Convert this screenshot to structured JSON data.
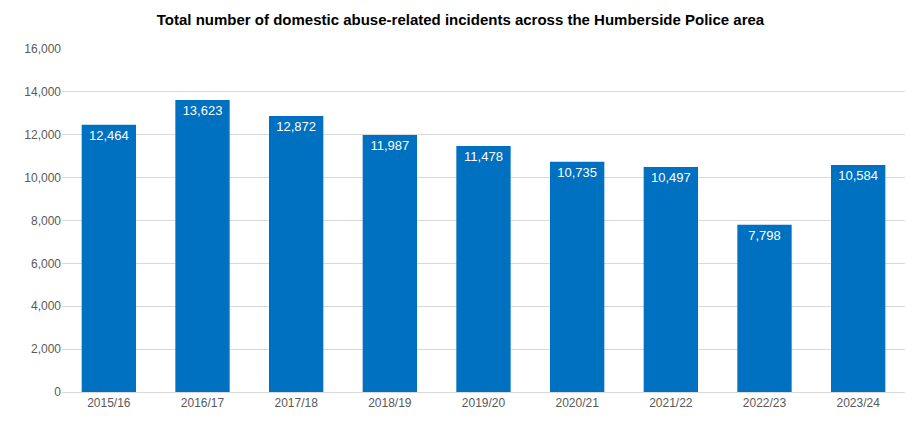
{
  "chart_data": {
    "type": "bar",
    "title": "Total number of domestic abuse-related incidents across the Humberside Police area",
    "categories": [
      "2015/16",
      "2016/17",
      "2017/18",
      "2018/19",
      "2019/20",
      "2020/21",
      "2021/22",
      "2022/23",
      "2023/24"
    ],
    "values": [
      12464,
      13623,
      12872,
      11987,
      11478,
      10735,
      10497,
      7798,
      10584
    ],
    "value_labels": [
      "12,464",
      "13,623",
      "12,872",
      "11,987",
      "11,478",
      "10,735",
      "10,497",
      "7,798",
      "10,584"
    ],
    "color": "#0070c0",
    "ylim": [
      0,
      16000
    ],
    "yticks": [
      0,
      {
        "value": 2000,
        "label": "2,000"
      },
      {
        "value": 4000,
        "label": "4,000"
      },
      {
        "value": 6000,
        "label": "6,000"
      },
      {
        "value": 8000,
        "label": "8,000"
      },
      {
        "value": 10000,
        "label": "10,000"
      },
      {
        "value": 12000,
        "label": "12,000"
      },
      {
        "value": 14000,
        "label": "14,000"
      },
      {
        "value": 16000,
        "label": "16,000"
      }
    ],
    "grid": true,
    "data_labels": true
  }
}
